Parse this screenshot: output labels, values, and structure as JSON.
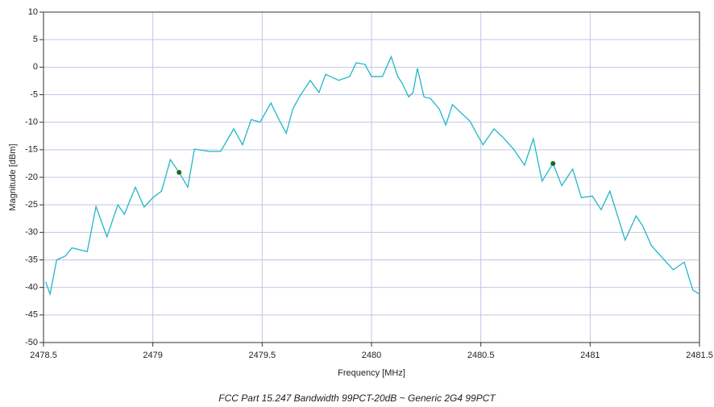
{
  "chart_data": {
    "type": "line",
    "title": "FCC Part 15.247 Bandwidth 99PCT-20dB ~ Generic 2G4 99PCT",
    "x_label": "Frequency [MHz]",
    "y_label": "Magnitude [dBm]",
    "xlim": [
      2478.5,
      2481.5
    ],
    "xticks": [
      2478.5,
      2479,
      2479.5,
      2480,
      2480.5,
      2481,
      2481.5
    ],
    "ylim": [
      -50,
      10
    ],
    "yticks": [
      10,
      5,
      0,
      -5,
      -10,
      -15,
      -20,
      -25,
      -30,
      -35,
      -40,
      -45,
      -50
    ],
    "grid": true,
    "series": [
      {
        "color": "#22b6c8",
        "x": [
          2478.51,
          2478.53,
          2478.56,
          2478.6,
          2478.63,
          2478.7,
          2478.74,
          2478.79,
          2478.84,
          2478.87,
          2478.92,
          2478.96,
          2479.0,
          2479.04,
          2479.08,
          2479.12,
          2479.16,
          2479.19,
          2479.26,
          2479.31,
          2479.37,
          2479.41,
          2479.45,
          2479.49,
          2479.54,
          2479.57,
          2479.61,
          2479.64,
          2479.67,
          2479.72,
          2479.76,
          2479.79,
          2479.85,
          2479.9,
          2479.93,
          2479.97,
          2480.0,
          2480.05,
          2480.09,
          2480.12,
          2480.14,
          2480.17,
          2480.19,
          2480.21,
          2480.24,
          2480.27,
          2480.31,
          2480.34,
          2480.37,
          2480.41,
          2480.45,
          2480.48,
          2480.51,
          2480.56,
          2480.6,
          2480.65,
          2480.7,
          2480.74,
          2480.78,
          2480.83,
          2480.87,
          2480.92,
          2480.96,
          2481.01,
          2481.05,
          2481.09,
          2481.16,
          2481.21,
          2481.24,
          2481.28,
          2481.33,
          2481.38,
          2481.43,
          2481.47,
          2481.5
        ],
        "values": [
          -39,
          -41.2,
          -35,
          -34.3,
          -32.8,
          -33.5,
          -25.3,
          -30.8,
          -25,
          -26.7,
          -21.8,
          -25.4,
          -23.7,
          -22.5,
          -16.8,
          -19.1,
          -21.8,
          -14.9,
          -15.3,
          -15.3,
          -11.2,
          -14.1,
          -9.5,
          -10,
          -6.5,
          -9,
          -12,
          -7.6,
          -5.4,
          -2.4,
          -4.6,
          -1.3,
          -2.4,
          -1.7,
          0.8,
          0.5,
          -1.7,
          -1.7,
          1.9,
          -1.7,
          -2.9,
          -5.4,
          -4.6,
          -0.2,
          -5.4,
          -5.7,
          -7.6,
          -10.5,
          -6.8,
          -8.3,
          -9.8,
          -12,
          -14.1,
          -11.2,
          -12.7,
          -14.9,
          -17.8,
          -13,
          -20.7,
          -17.5,
          -21.5,
          -18.5,
          -23.7,
          -23.4,
          -25.9,
          -22.5,
          -31.4,
          -27,
          -28.8,
          -32.4,
          -34.6,
          -36.8,
          -35.4,
          -40.5,
          -41.2
        ]
      }
    ],
    "markers": {
      "color": "#1a6b1a",
      "x": [
        2479.12,
        2480.83
      ],
      "values": [
        -19.1,
        -17.5
      ]
    }
  }
}
